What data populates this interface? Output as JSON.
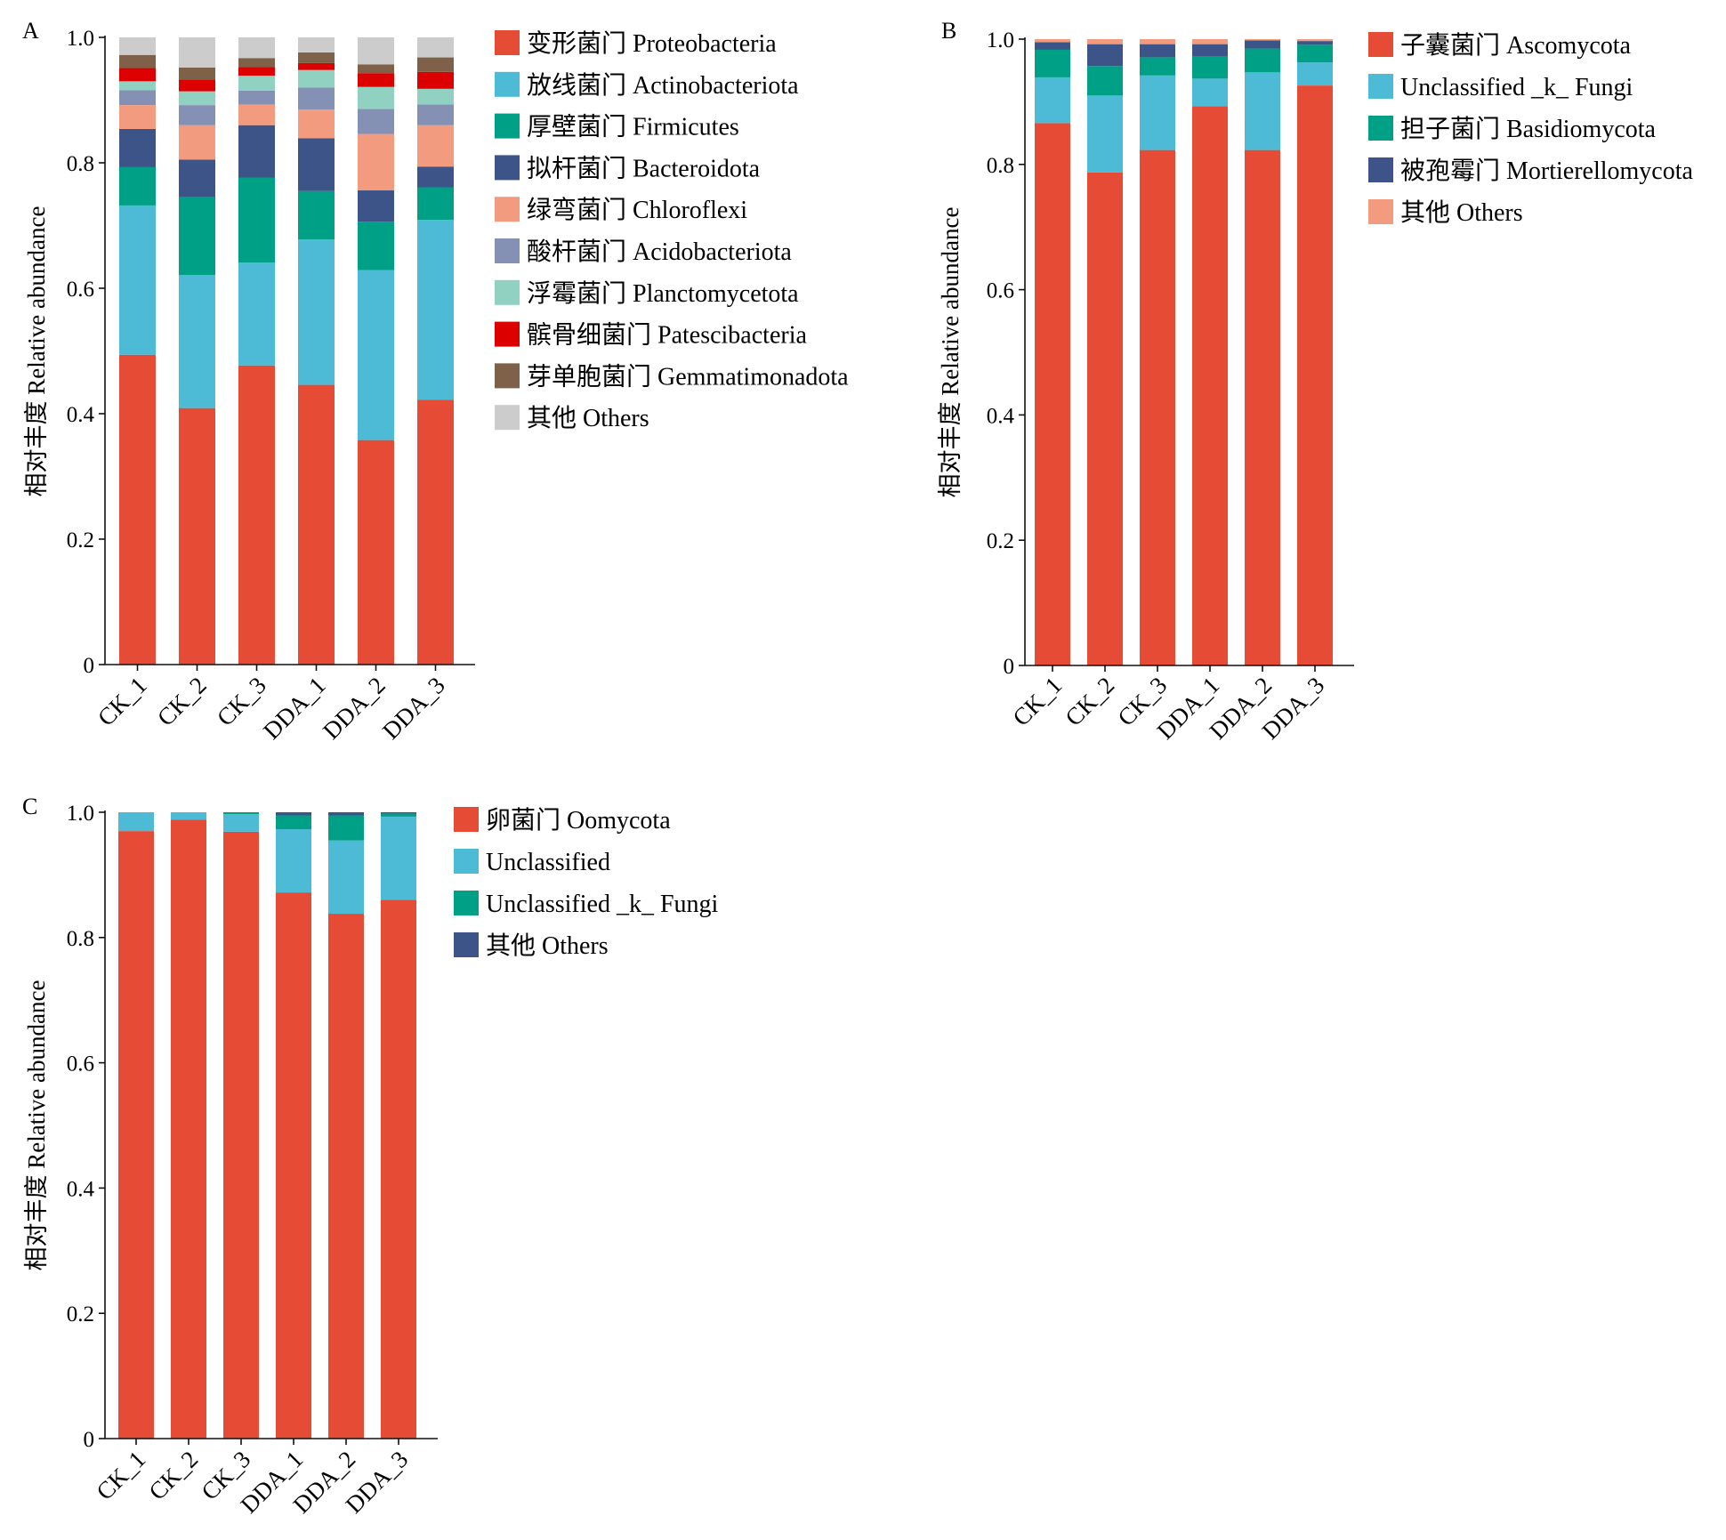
{
  "figure": {
    "width": 1940,
    "height": 1731
  },
  "chart_data": [
    {
      "panel": "A",
      "type": "bar",
      "stacked": true,
      "ylabel": "相对丰度 Relative abundance",
      "ylim": [
        0,
        1.0
      ],
      "yticks": [
        "0",
        "0.2",
        "0.4",
        "0.6",
        "0.8",
        "1.0"
      ],
      "categories": [
        "CK_1",
        "CK_2",
        "CK_3",
        "DDA_1",
        "DDA_2",
        "DDA_3"
      ],
      "legend_position": "right",
      "series": [
        {
          "name": "变形菌门 Proteobacteria",
          "color": "#e64b35",
          "values": [
            0.494,
            0.409,
            0.477,
            0.446,
            0.358,
            0.422
          ]
        },
        {
          "name": "放线菌门 Actinobacteriota",
          "color": "#4dbbd5",
          "values": [
            0.238,
            0.212,
            0.164,
            0.232,
            0.271,
            0.287
          ]
        },
        {
          "name": "厚壁菌门 Firmicutes",
          "color": "#00a087",
          "values": [
            0.061,
            0.124,
            0.135,
            0.077,
            0.077,
            0.052
          ]
        },
        {
          "name": "拟杆菌门 Bacteroidota",
          "color": "#3c5488",
          "values": [
            0.061,
            0.06,
            0.084,
            0.084,
            0.05,
            0.033
          ]
        },
        {
          "name": "绿弯菌门 Chloroflexi",
          "color": "#f39b7f",
          "values": [
            0.038,
            0.055,
            0.033,
            0.046,
            0.09,
            0.066
          ]
        },
        {
          "name": "酸杆菌门 Acidobacteriota",
          "color": "#8491b4",
          "values": [
            0.024,
            0.032,
            0.022,
            0.035,
            0.04,
            0.033
          ]
        },
        {
          "name": "浮霉菌门 Planctomycetota",
          "color": "#91d1c2",
          "values": [
            0.014,
            0.022,
            0.024,
            0.028,
            0.035,
            0.025
          ]
        },
        {
          "name": "髌骨细菌门 Patescibacteria",
          "color": "#dc0000",
          "values": [
            0.021,
            0.019,
            0.014,
            0.011,
            0.022,
            0.027
          ]
        },
        {
          "name": "芽单胞菌门 Gemmatimonadota",
          "color": "#7e6148",
          "values": [
            0.021,
            0.019,
            0.014,
            0.017,
            0.014,
            0.023
          ]
        },
        {
          "name": "其他 Others",
          "color": "#cccccc",
          "values": [
            0.028,
            0.048,
            0.033,
            0.024,
            0.043,
            0.032
          ]
        }
      ]
    },
    {
      "panel": "B",
      "type": "bar",
      "stacked": true,
      "ylabel": "相对丰度 Relative abundance",
      "ylim": [
        0,
        1.0
      ],
      "yticks": [
        "0",
        "0.2",
        "0.4",
        "0.6",
        "0.8",
        "1.0"
      ],
      "categories": [
        "CK_1",
        "CK_2",
        "CK_3",
        "DDA_1",
        "DDA_2",
        "DDA_3"
      ],
      "legend_position": "right",
      "series": [
        {
          "name": "子囊菌门 Ascomycota",
          "color": "#e64b35",
          "values": [
            0.866,
            0.787,
            0.823,
            0.893,
            0.823,
            0.926
          ]
        },
        {
          "name": "Unclassified _k_ Fungi",
          "color": "#4dbbd5",
          "values": [
            0.073,
            0.123,
            0.119,
            0.044,
            0.124,
            0.037
          ]
        },
        {
          "name": "担子菌门 Basidiomycota",
          "color": "#00a087",
          "values": [
            0.044,
            0.047,
            0.029,
            0.035,
            0.038,
            0.028
          ]
        },
        {
          "name": "被孢霉门 Mortierellomycota",
          "color": "#3c5488",
          "values": [
            0.012,
            0.035,
            0.021,
            0.02,
            0.013,
            0.006
          ]
        },
        {
          "name": "其他 Others",
          "color": "#f39b7f",
          "values": [
            0.005,
            0.008,
            0.008,
            0.008,
            0.002,
            0.003
          ]
        }
      ]
    },
    {
      "panel": "C",
      "type": "bar",
      "stacked": true,
      "ylabel": "相对丰度 Relative abundance",
      "ylim": [
        0,
        1.0
      ],
      "yticks": [
        "0",
        "0.2",
        "0.4",
        "0.6",
        "0.8",
        "1.0"
      ],
      "categories": [
        "CK_1",
        "CK_2",
        "CK_3",
        "DDA_1",
        "DDA_2",
        "DDA_3"
      ],
      "legend_position": "right",
      "series": [
        {
          "name": "卵菌门 Oomycota",
          "color": "#e64b35",
          "values": [
            0.97,
            0.988,
            0.969,
            0.872,
            0.838,
            0.86
          ]
        },
        {
          "name": "Unclassified",
          "color": "#4dbbd5",
          "values": [
            0.03,
            0.012,
            0.028,
            0.101,
            0.117,
            0.133
          ]
        },
        {
          "name": "Unclassified _k_ Fungi",
          "color": "#00a087",
          "values": [
            0.0,
            0.0,
            0.003,
            0.022,
            0.04,
            0.005
          ]
        },
        {
          "name": "其他 Others",
          "color": "#3c5488",
          "values": [
            0.0,
            0.0,
            0.0,
            0.005,
            0.005,
            0.002
          ]
        }
      ]
    }
  ]
}
